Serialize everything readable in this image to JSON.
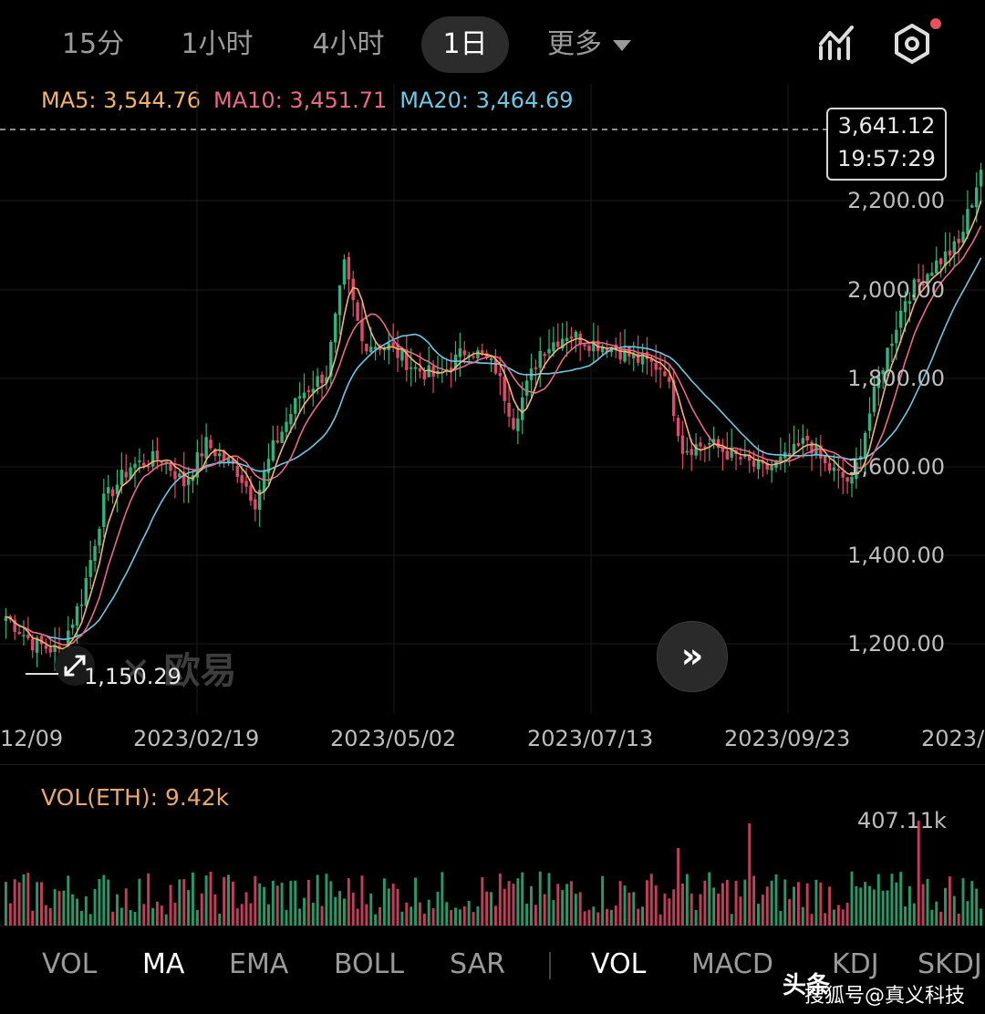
{
  "timeframes": [
    {
      "label": "15分",
      "active": false
    },
    {
      "label": "1小时",
      "active": false
    },
    {
      "label": "4小时",
      "active": false
    },
    {
      "label": "1日",
      "active": true
    },
    {
      "label": "更多",
      "active": false
    }
  ],
  "icons": {
    "chart": "chart-draw-icon",
    "settings": "settings-hex-icon",
    "forward": "double-chevron-right-icon",
    "expand": "expand-arrows-icon"
  },
  "ma": {
    "ma5_label": "MA5: 3,544.76",
    "ma10_label": "MA10: 3,451.71",
    "ma20_label": "MA20: 3,464.69",
    "colors": {
      "ma5": "#f2b46c",
      "ma10": "#e8698a",
      "ma20": "#6ec8e4"
    }
  },
  "price_box": {
    "price": "3,641.12",
    "time": "19:57:29"
  },
  "y_axis": [
    "2,200.00",
    "2,000.00",
    "1,800.00",
    "1,600.00",
    "1,400.00",
    "1,200.00"
  ],
  "x_axis": [
    "12/09",
    "2023/02/19",
    "2023/05/02",
    "2023/07/13",
    "2023/09/23",
    "2023/"
  ],
  "low_label": "1,150.29",
  "watermark": "欧易",
  "volume": {
    "label": "VOL(ETH): 9.42k",
    "max_label": "407.11k"
  },
  "bottom_tabs": {
    "main": [
      {
        "label": "VOL",
        "active": false
      },
      {
        "label": "MA",
        "active": true
      },
      {
        "label": "EMA",
        "active": false
      },
      {
        "label": "BOLL",
        "active": false
      },
      {
        "label": "SAR",
        "active": false
      }
    ],
    "sub": [
      {
        "label": "VOL",
        "active": true
      },
      {
        "label": "MACD",
        "active": false
      },
      {
        "label": "KDJ",
        "active": false
      },
      {
        "label": "SKDJ",
        "active": false
      }
    ]
  },
  "credit": {
    "line1": "头条",
    "line2": "搜狐号@真义科技"
  },
  "colors": {
    "up": "#2fb37a",
    "down": "#e04a6a",
    "grid": "#1c1c1c"
  },
  "chart_data": {
    "type": "candlestick",
    "title": "",
    "ylim": [
      1100,
      2300
    ],
    "anchors": [
      {
        "i": 0,
        "p": 1260
      },
      {
        "i": 6,
        "p": 1200
      },
      {
        "i": 12,
        "p": 1180
      },
      {
        "i": 17,
        "p": 1300
      },
      {
        "i": 22,
        "p": 1520
      },
      {
        "i": 28,
        "p": 1600
      },
      {
        "i": 35,
        "p": 1620
      },
      {
        "i": 40,
        "p": 1560
      },
      {
        "i": 45,
        "p": 1650
      },
      {
        "i": 52,
        "p": 1590
      },
      {
        "i": 56,
        "p": 1520
      },
      {
        "i": 60,
        "p": 1640
      },
      {
        "i": 66,
        "p": 1760
      },
      {
        "i": 72,
        "p": 1810
      },
      {
        "i": 76,
        "p": 2050
      },
      {
        "i": 80,
        "p": 1880
      },
      {
        "i": 86,
        "p": 1870
      },
      {
        "i": 92,
        "p": 1820
      },
      {
        "i": 97,
        "p": 1800
      },
      {
        "i": 104,
        "p": 1870
      },
      {
        "i": 110,
        "p": 1820
      },
      {
        "i": 114,
        "p": 1700
      },
      {
        "i": 120,
        "p": 1860
      },
      {
        "i": 126,
        "p": 1900
      },
      {
        "i": 131,
        "p": 1880
      },
      {
        "i": 136,
        "p": 1870
      },
      {
        "i": 142,
        "p": 1840
      },
      {
        "i": 148,
        "p": 1820
      },
      {
        "i": 152,
        "p": 1640
      },
      {
        "i": 158,
        "p": 1650
      },
      {
        "i": 164,
        "p": 1620
      },
      {
        "i": 170,
        "p": 1590
      },
      {
        "i": 176,
        "p": 1620
      },
      {
        "i": 180,
        "p": 1660
      },
      {
        "i": 184,
        "p": 1600
      },
      {
        "i": 190,
        "p": 1560
      },
      {
        "i": 196,
        "p": 1800
      },
      {
        "i": 202,
        "p": 1980
      },
      {
        "i": 208,
        "p": 2050
      },
      {
        "i": 214,
        "p": 2100
      },
      {
        "i": 219,
        "p": 2270
      }
    ]
  }
}
